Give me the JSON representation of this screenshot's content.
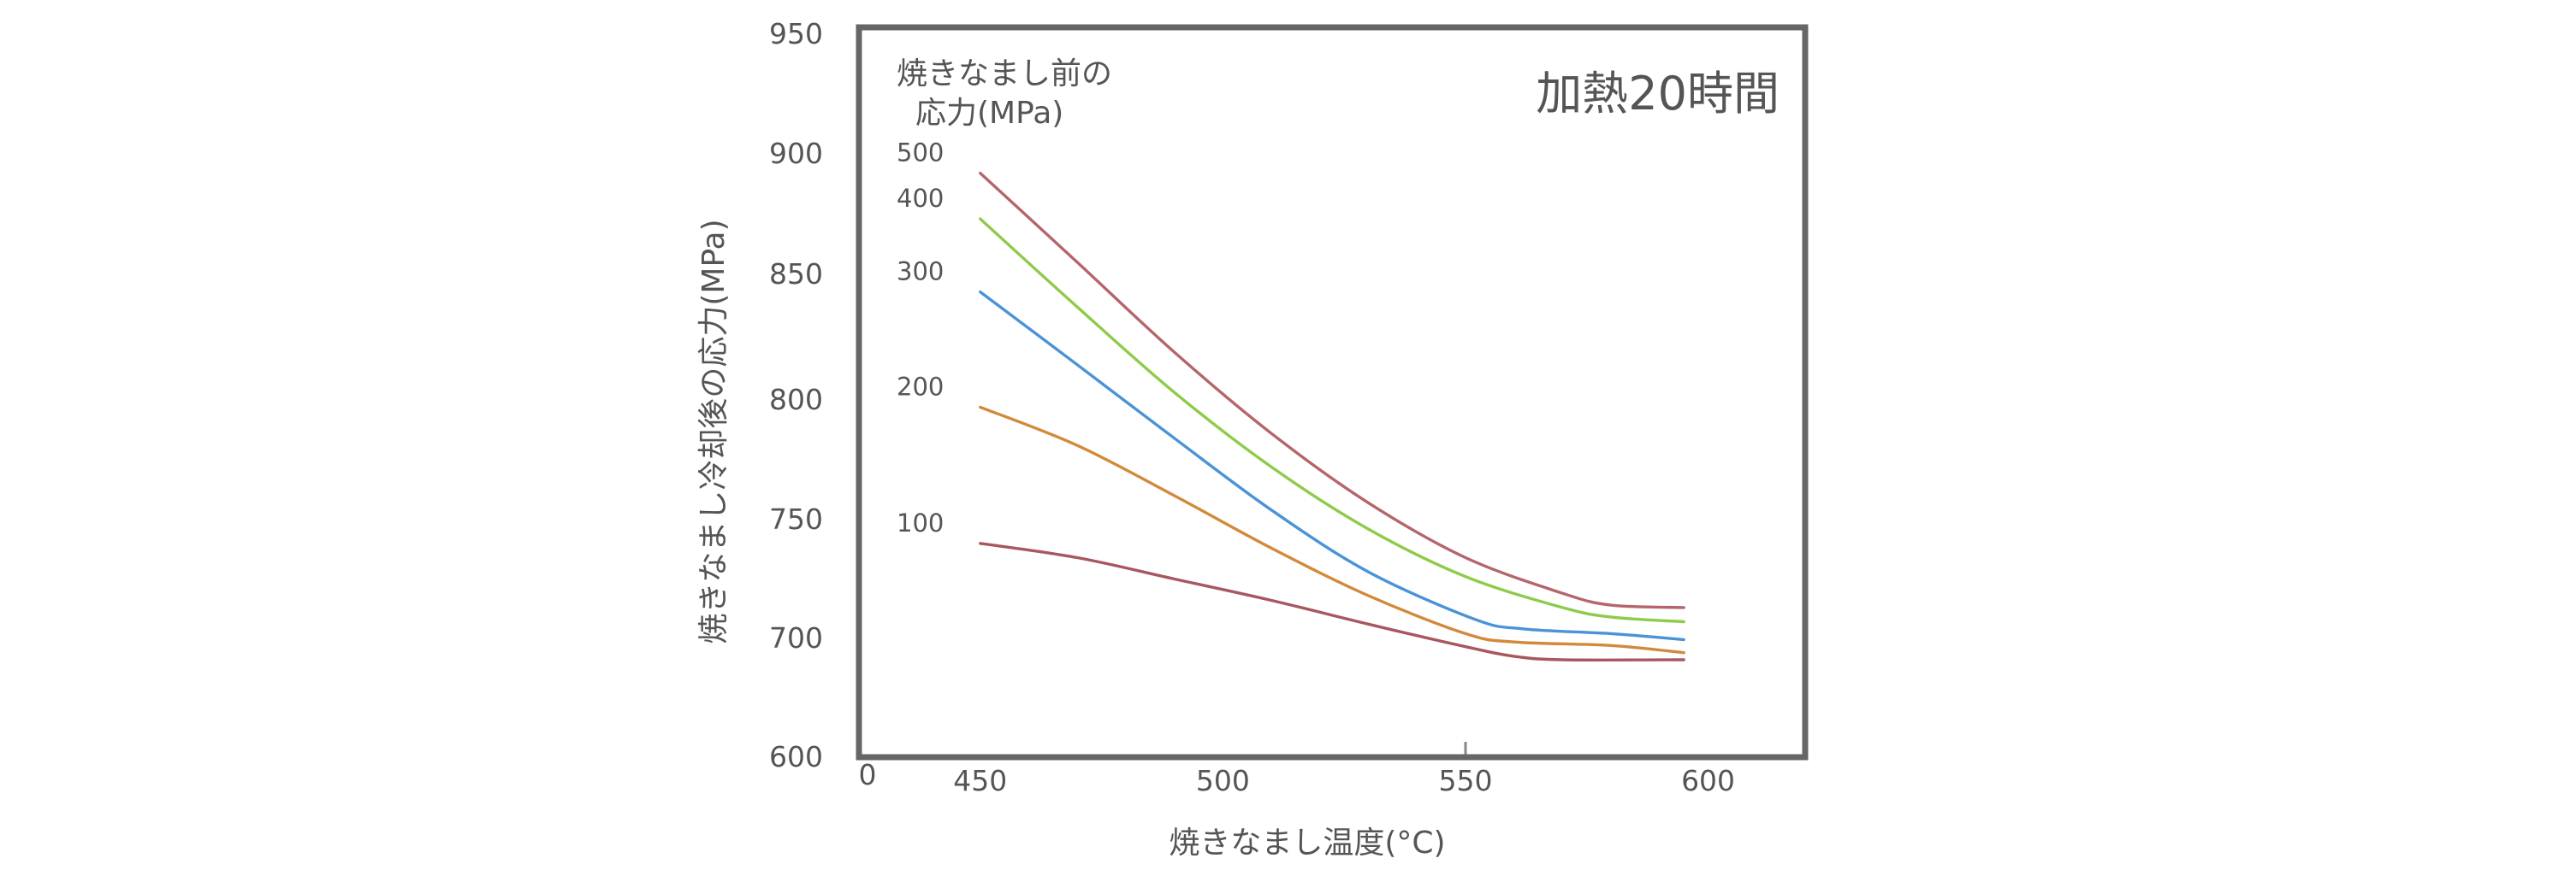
{
  "chart_data": {
    "type": "line",
    "annotation": "加熱20時間",
    "legend_title_lines": [
      "焼きなまし前の",
      "応力(MPa)"
    ],
    "xlabel": "焼きなまし温度(°C)",
    "ylabel": "焼きなまし冷却後の応力(MPa)",
    "xlim": [
      425,
      620
    ],
    "ylim": [
      600,
      950
    ],
    "x_axis_origin_label": "0",
    "x_ticks": [
      "450",
      "500",
      "550",
      "600"
    ],
    "y_ticks": [
      "950",
      "900",
      "850",
      "800",
      "750",
      "700",
      "600"
    ],
    "series": [
      {
        "name": "500",
        "color": "#b5656c",
        "points": [
          [
            450,
            892
          ],
          [
            470,
            855
          ],
          [
            490,
            819
          ],
          [
            510,
            786
          ],
          [
            530,
            757
          ],
          [
            550,
            734
          ],
          [
            570,
            719
          ],
          [
            580,
            714
          ],
          [
            595,
            713
          ]
        ]
      },
      {
        "name": "400",
        "color": "#8fcb4a",
        "points": [
          [
            450,
            873
          ],
          [
            470,
            837
          ],
          [
            490,
            803
          ],
          [
            510,
            772
          ],
          [
            530,
            746
          ],
          [
            550,
            726
          ],
          [
            570,
            713
          ],
          [
            580,
            709
          ],
          [
            595,
            707
          ]
        ]
      },
      {
        "name": "300",
        "color": "#4a93d6",
        "points": [
          [
            450,
            843
          ],
          [
            470,
            814
          ],
          [
            490,
            784
          ],
          [
            510,
            754
          ],
          [
            530,
            728
          ],
          [
            552,
            708
          ],
          [
            562,
            704
          ],
          [
            580,
            702
          ],
          [
            595,
            699
          ]
        ]
      },
      {
        "name": "200",
        "color": "#d28a3a",
        "points": [
          [
            450,
            797
          ],
          [
            470,
            781
          ],
          [
            490,
            760
          ],
          [
            510,
            738
          ],
          [
            530,
            718
          ],
          [
            550,
            702
          ],
          [
            560,
            697
          ],
          [
            580,
            694
          ],
          [
            595,
            688
          ]
        ]
      },
      {
        "name": "100",
        "color": "#a8575f",
        "points": [
          [
            450,
            740
          ],
          [
            470,
            734
          ],
          [
            490,
            725
          ],
          [
            510,
            716
          ],
          [
            530,
            706
          ],
          [
            550,
            693
          ],
          [
            560,
            685
          ],
          [
            570,
            682
          ],
          [
            595,
            682
          ]
        ]
      }
    ]
  }
}
